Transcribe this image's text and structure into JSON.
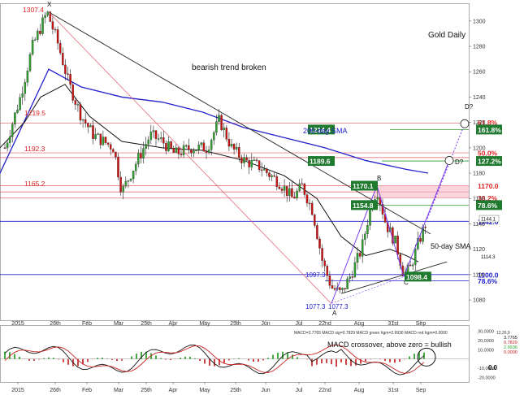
{
  "chart_data": [
    {
      "type": "candlestick",
      "title": "Gold Daily",
      "annotation_main": "bearish trend broken",
      "y_ticks": [
        1080,
        1100,
        1120,
        1140,
        1160,
        1180,
        1200,
        1220,
        1240,
        1260,
        1280,
        1300
      ],
      "ylim": [
        1064,
        1314
      ],
      "x_tick_labels": [
        "2015",
        "26th",
        "Feb",
        "Mar",
        "25th",
        "Apr",
        "May",
        "25th",
        "Jun",
        "Jul",
        "22nd",
        "Aug",
        "31st",
        "Sep"
      ],
      "last_price": "1144.1",
      "side_value": "1114.3",
      "fib_levels": [
        {
          "label": "61.8%",
          "price": 1220
        },
        {
          "label": "161.8%",
          "price": 1214.4
        },
        {
          "label": "50.0%",
          "price": 1196
        },
        {
          "label": "127.2%",
          "price": 1189.6
        },
        {
          "label": "1170.0",
          "price": 1170
        },
        {
          "label": "38.2%",
          "price": 1160.5
        },
        {
          "label": "78.6%",
          "price": 1154.8
        },
        {
          "label": "1142.0",
          "price": 1142
        },
        {
          "label": "1100.0",
          "price": 1100
        },
        {
          "label": "78.6%",
          "price": 1095
        }
      ],
      "horizontal_levels": [
        {
          "label": "1219.5",
          "price": 1219.5
        },
        {
          "label": "1192.3",
          "price": 1192.3
        },
        {
          "label": "1165.2",
          "price": 1165.2
        }
      ],
      "price_labels": [
        {
          "text": "1307.4",
          "price": 1307.4
        },
        {
          "text": "1214.4",
          "price": 1214.4
        },
        {
          "text": "1189.6",
          "price": 1189.6
        },
        {
          "text": "1170.1",
          "price": 1170.1
        },
        {
          "text": "1154.8",
          "price": 1154.8
        },
        {
          "text": "1097.3",
          "price": 1097.3
        },
        {
          "text": "1098.4",
          "price": 1098.4
        },
        {
          "text": "1077.3",
          "price": 1077.3
        },
        {
          "text": "1077.3",
          "price": 1077.3
        }
      ],
      "pattern_points": [
        "X",
        "A",
        "B",
        "C",
        "D?",
        "D?"
      ],
      "annotations": [
        "200-day SMA",
        "50-day SMA"
      ],
      "series": [
        {
          "name": "200-day SMA",
          "color": "#2222cc"
        },
        {
          "name": "50-day SMA",
          "color": "#111111"
        }
      ]
    },
    {
      "type": "macd",
      "header": "MACD=3.7765 MACD sig=0.7829 MACD green hgm=2.9936 MACD red hgm=0.0000",
      "header_right": "12,26,9",
      "annotation": "MACD crossover, above zero = bullish",
      "y_ticks": [
        "30,0000",
        "20,0000",
        "10,0000",
        "-10,0000",
        "-20,0000"
      ],
      "right_values": [
        "3.7765",
        "0.7829",
        "2.9936",
        "0.0000"
      ],
      "zero_label": "0.0",
      "series": [
        {
          "name": "MACD",
          "color": "#111111"
        },
        {
          "name": "Signal",
          "color": "#cc2222"
        }
      ]
    }
  ],
  "colors": {
    "bull": "#2e9e2e",
    "bear": "#cc1111",
    "fib_line": "#e05a6a",
    "level_blue": "#2222cc",
    "green_box": "#1f7a2f",
    "purple": "#7a3cf0",
    "hist_green": "#44aa44",
    "hist_red": "#cc4444"
  }
}
